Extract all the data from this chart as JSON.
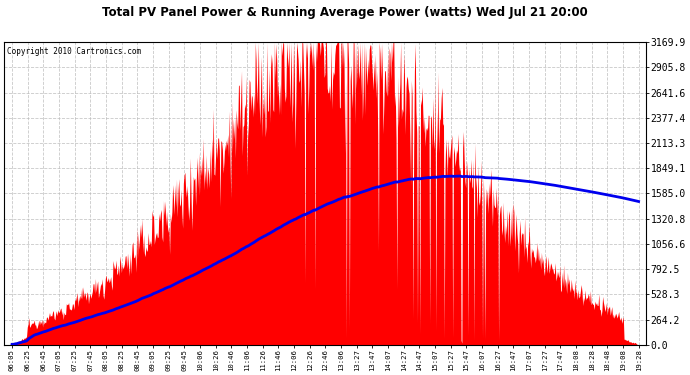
{
  "title": "Total PV Panel Power & Running Average Power (watts) Wed Jul 21 20:00",
  "copyright": "Copyright 2010 Cartronics.com",
  "yticks": [
    0.0,
    264.2,
    528.3,
    792.5,
    1056.6,
    1320.8,
    1585.0,
    1849.1,
    2113.3,
    2377.4,
    2641.6,
    2905.8,
    3169.9
  ],
  "ymax": 3169.9,
  "ymin": 0.0,
  "fill_color": "#FF0000",
  "avg_color": "#0000EE",
  "background_color": "#FFFFFF",
  "grid_color": "#BBBBBB",
  "xtick_labels": [
    "06:05",
    "06:25",
    "06:45",
    "07:05",
    "07:25",
    "07:45",
    "08:05",
    "08:25",
    "08:45",
    "09:05",
    "09:25",
    "09:45",
    "10:06",
    "10:26",
    "10:46",
    "11:06",
    "11:26",
    "11:46",
    "12:06",
    "12:26",
    "12:46",
    "13:06",
    "13:27",
    "13:47",
    "14:07",
    "14:27",
    "14:47",
    "15:07",
    "15:27",
    "15:47",
    "16:07",
    "16:27",
    "16:47",
    "17:07",
    "17:27",
    "17:47",
    "18:08",
    "18:28",
    "18:48",
    "19:08",
    "19:28"
  ],
  "n_labels": 41
}
